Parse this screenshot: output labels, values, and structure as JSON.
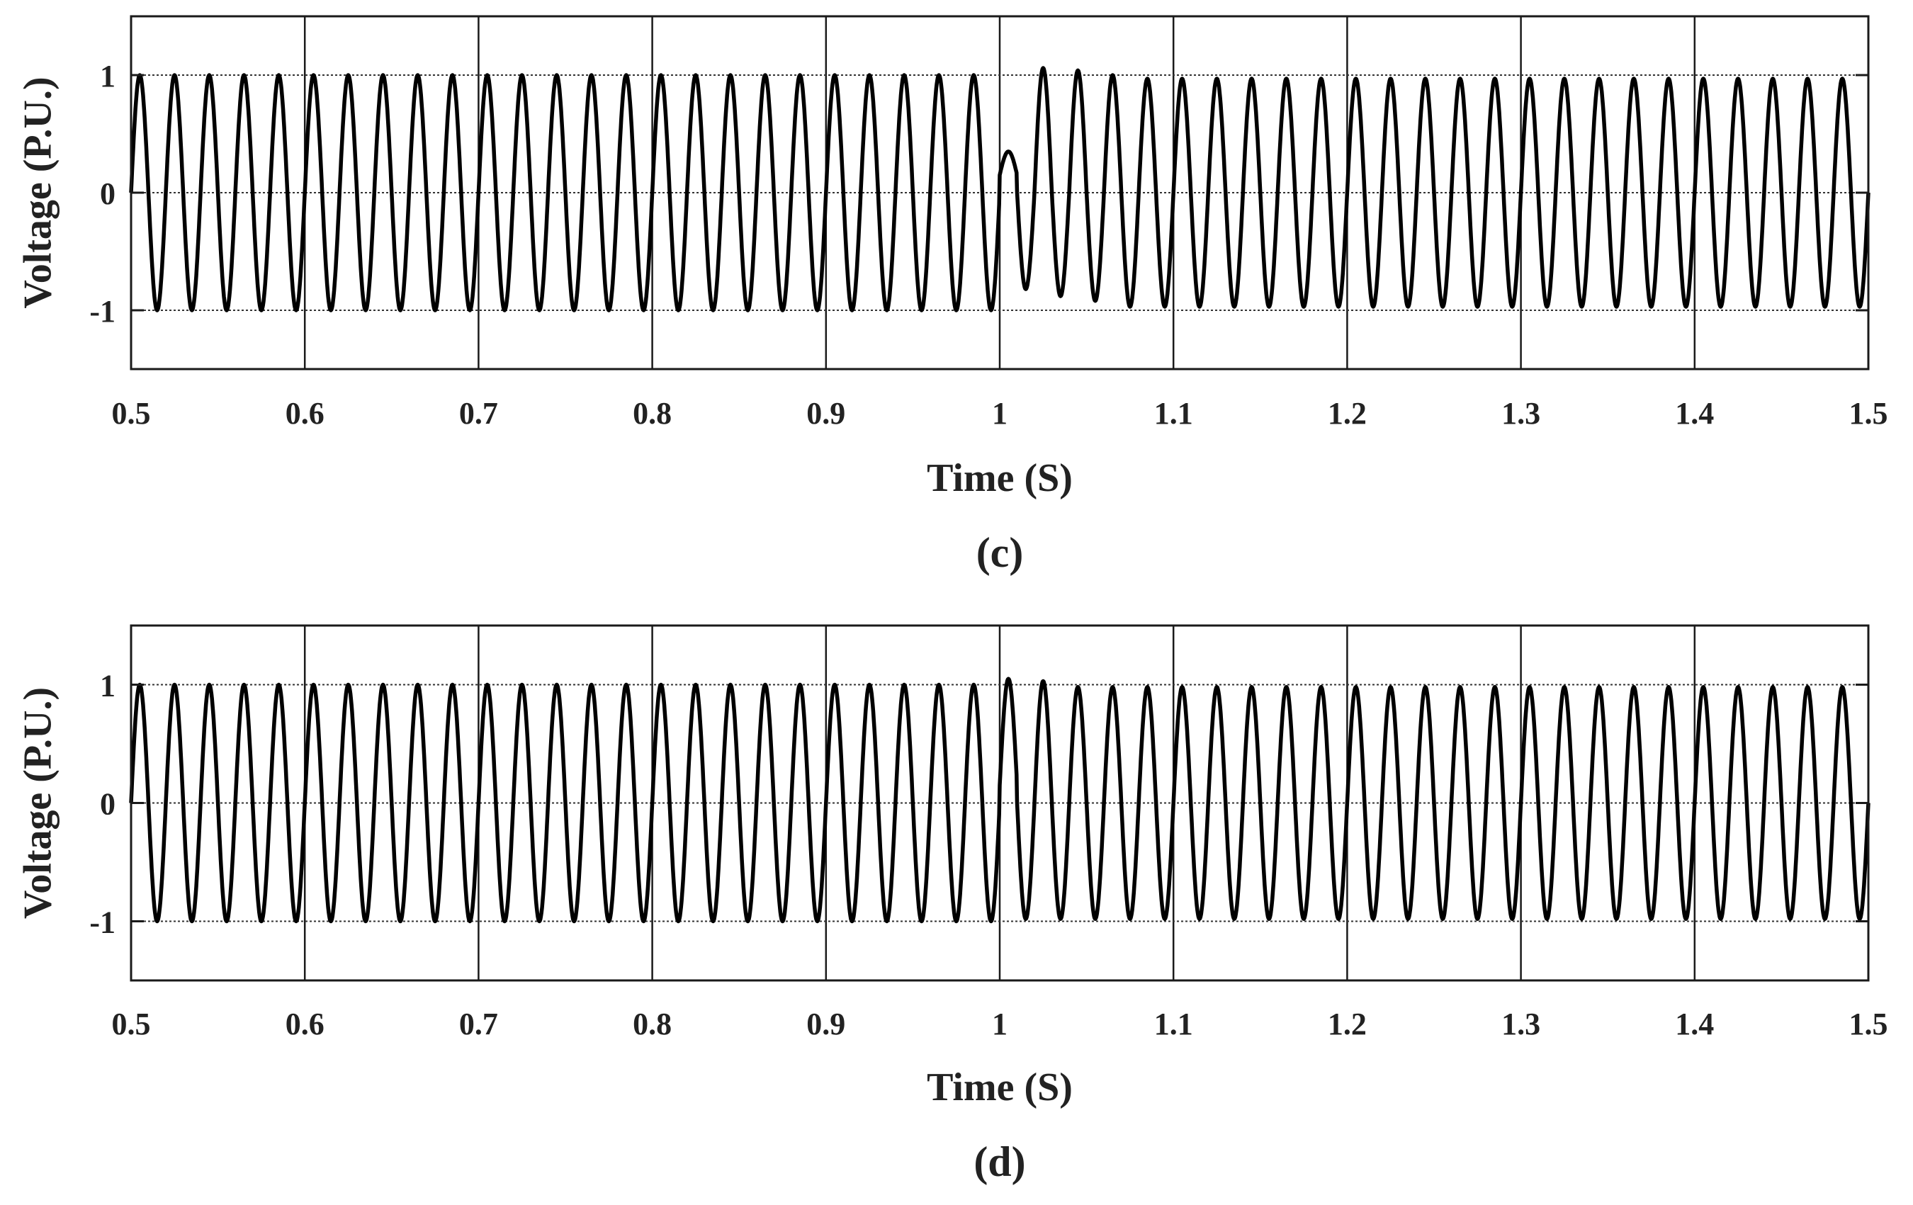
{
  "chart_data": [
    {
      "type": "line",
      "panel_label": "(c)",
      "xlabel": "Time (S)",
      "ylabel": "Voltage (P.U.)",
      "xlim": [
        0.5,
        1.5
      ],
      "ylim": [
        -1.5,
        1.5
      ],
      "x_ticks": [
        0.5,
        0.6,
        0.7,
        0.8,
        0.9,
        1.0,
        1.1,
        1.2,
        1.3,
        1.4,
        1.5
      ],
      "x_tick_labels": [
        "0.5",
        "0.6",
        "0.7",
        "0.8",
        "0.9",
        "1",
        "1.1",
        "1.2",
        "1.3",
        "1.4",
        "1.5"
      ],
      "y_ticks": [
        1,
        0,
        -1
      ],
      "y_tick_labels": [
        "1",
        "0",
        "-1"
      ],
      "reference_lines": [
        1,
        0,
        -1
      ],
      "grid": true,
      "series": [
        {
          "frequency_hz": 50,
          "amplitude_pu": 1.0,
          "t_start": 0.5,
          "t_end": 1.5,
          "disturbance": {
            "t_start": 1.0,
            "t_end": 1.07,
            "peak_values": [
              0.35,
              -0.82,
              1.06,
              -0.88,
              1.04,
              -0.92,
              1.0
            ],
            "settled_amplitude": 0.97
          }
        }
      ],
      "colors": {
        "trace": "#000000",
        "grid": "#1a1a1a"
      }
    },
    {
      "type": "line",
      "panel_label": "(d)",
      "xlabel": "Time (S)",
      "ylabel": "Voltage (P.U.)",
      "xlim": [
        0.5,
        1.5
      ],
      "ylim": [
        -1.5,
        1.5
      ],
      "x_ticks": [
        0.5,
        0.6,
        0.7,
        0.8,
        0.9,
        1.0,
        1.1,
        1.2,
        1.3,
        1.4,
        1.5
      ],
      "x_tick_labels": [
        "0.5",
        "0.6",
        "0.7",
        "0.8",
        "0.9",
        "1",
        "1.1",
        "1.2",
        "1.3",
        "1.4",
        "1.5"
      ],
      "y_ticks": [
        1,
        0,
        -1
      ],
      "y_tick_labels": [
        "1",
        "0",
        "-1"
      ],
      "reference_lines": [
        1,
        0,
        -1
      ],
      "grid": true,
      "series": [
        {
          "frequency_hz": 50,
          "amplitude_pu": 1.0,
          "t_start": 0.5,
          "t_end": 1.5,
          "disturbance": {
            "t_start": 1.0,
            "t_end": 1.03,
            "peak_values": [
              1.05,
              -0.98,
              1.03
            ],
            "settled_amplitude": 0.98
          }
        }
      ],
      "colors": {
        "trace": "#000000",
        "grid": "#1a1a1a"
      }
    }
  ]
}
